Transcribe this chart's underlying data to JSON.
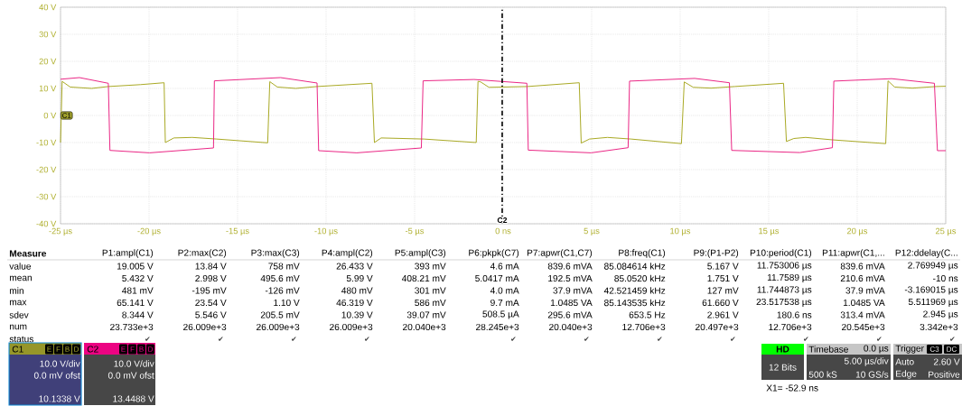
{
  "chart_data": {
    "type": "line",
    "marker": "none",
    "grid": true,
    "xlim": [
      -25,
      25
    ],
    "ylim": [
      -40,
      40
    ],
    "xticks": [
      {
        "value": -25,
        "label": "-25 µs"
      },
      {
        "value": -20,
        "label": "-20 µs"
      },
      {
        "value": -15,
        "label": "-15 µs"
      },
      {
        "value": -10,
        "label": "-10 µs"
      },
      {
        "value": -5,
        "label": "-5 µs"
      },
      {
        "value": 0,
        "label": "0 ns"
      },
      {
        "value": 5,
        "label": "5 µs"
      },
      {
        "value": 10,
        "label": "10 µs"
      },
      {
        "value": 15,
        "label": "15 µs"
      },
      {
        "value": 20,
        "label": "20 µs"
      },
      {
        "value": 25,
        "label": "25 µs"
      }
    ],
    "yticks": [
      {
        "value": -40,
        "label": "-40 V"
      },
      {
        "value": -30,
        "label": "-30 V"
      },
      {
        "value": -20,
        "label": "-20 V"
      },
      {
        "value": -10,
        "label": "-10 V"
      },
      {
        "value": 0,
        "label": "0 V"
      },
      {
        "value": 10,
        "label": "10 V"
      },
      {
        "value": 20,
        "label": "20 V"
      },
      {
        "value": 30,
        "label": "30 V"
      },
      {
        "value": 40,
        "label": "40 V"
      }
    ],
    "ref_lines": [
      {
        "axis": "x",
        "value": -0.0529,
        "label": "C2",
        "color": "#000000",
        "line_style": "dashed"
      }
    ],
    "series": [
      {
        "color": "#a3a314",
        "x": [
          -25,
          -24.91,
          -24.45,
          -23.24,
          -22.3,
          -20.49,
          -19.15,
          -19.08,
          -18.6,
          -17.56,
          -16.19,
          -13.3,
          -13.18,
          -12.75,
          -11.71,
          -10.51,
          -7.41,
          -7.27,
          -6.89,
          -4.48,
          -1.52,
          -1.42,
          -1.27,
          -0.8,
          1.37,
          4.3,
          4.41,
          4.88,
          5.89,
          7.22,
          10.07,
          10.23,
          10.74,
          11.74,
          13.08,
          15.84,
          16.0,
          16.42,
          17.09,
          18.6,
          21.61,
          21.74,
          22.11,
          23.11,
          24.45,
          25
        ],
        "values": [
          -10,
          12.6,
          10.5,
          10,
          10.7,
          11.4,
          12.1,
          -10,
          -8.3,
          -8.1,
          -8.7,
          -10.1,
          12.5,
          10.5,
          10,
          10.7,
          11.9,
          -10,
          -8.3,
          -8.7,
          -10,
          12.6,
          12.4,
          10.4,
          10.7,
          12.1,
          -10.2,
          -8.7,
          -8.1,
          -8.7,
          -10.4,
          12.4,
          10.4,
          10.1,
          10.7,
          11.9,
          -9.6,
          -8.5,
          -8.1,
          -9,
          -10.4,
          12.8,
          10.5,
          10.1,
          10.7,
          10.8
        ]
      },
      {
        "color": "#e8177c",
        "x": [
          -25,
          -23.93,
          -22.3,
          -22.21,
          -19.97,
          -16.36,
          -16.31,
          -12.57,
          -10.51,
          -10.42,
          -8.27,
          -4.62,
          -4.52,
          -1.64,
          1.34,
          1.42,
          4.97,
          7.06,
          7.14,
          10.82,
          12.78,
          12.91,
          16.76,
          18.6,
          18.68,
          21.94,
          24.36,
          24.53,
          25
        ],
        "values": [
          13.4,
          14,
          11.9,
          -12.9,
          -13.8,
          -12,
          12.8,
          14,
          12,
          -13,
          -13.8,
          -12,
          12.8,
          13.3,
          11.9,
          -12.8,
          -13.8,
          -11.9,
          12.7,
          13.7,
          12.1,
          -12.9,
          -13.7,
          -11.9,
          12.7,
          13.6,
          11.9,
          -13,
          -13
        ]
      }
    ],
    "annotations": [
      "C1",
      "Measure",
      "P1:ampl(C1)",
      "P2:max(C2)",
      "P3:max(C3)",
      "P4:ampl(C2)",
      "P5:ampl(C3)",
      "P6:pkpk(C7)",
      "P7:apwr(C1,C7)",
      "P8:freq(C1)",
      "P9:(P1-P2)",
      "P10:period(C1)",
      "P11:apwr(C1,...",
      "P12:ddelay(C...",
      "value",
      "19.005 V",
      "13.84 V",
      "758 mV",
      "26.433 V",
      "393 mV",
      "4.6 mA",
      "839.6 mVA",
      "85.084614 kHz",
      "5.167 V",
      "11.753006 µs",
      "839.6 mVA",
      "2.769949 µs",
      "mean",
      "5.432 V",
      "2.998 V",
      "495.6 mV",
      "5.99 V",
      "408.21 mV",
      "5.0417 mA",
      "192.5 mVA",
      "85.0520 kHz",
      "1.751 V",
      "11.7589 µs",
      "210.6 mVA",
      "-10 ns",
      "min",
      "481 mV",
      "-195 mV",
      "-126 mV",
      "480 mV",
      "301 mV",
      "4.0 mA",
      "37.9 mVA",
      "42.521459 kHz",
      "127 mV",
      "11.744873 µs",
      "37.9 mVA",
      "-3.169015 µs",
      "max",
      "65.141 V",
      "23.54 V",
      "1.10 V",
      "46.319 V",
      "586 mV",
      "9.7 mA",
      "1.0485 VA",
      "85.143535 kHz",
      "61.660 V",
      "23.517538 µs",
      "1.0485 VA",
      "5.511969 µs",
      "sdev",
      "8.344 V",
      "5.546 V",
      "205.5 mV",
      "10.39 V",
      "39.07 mV",
      "508.5 µA",
      "295.6 mVA",
      "653.5 Hz",
      "2.961 V",
      "180.6 ns",
      "313.4 mVA",
      "2.945 µs",
      "num",
      "23.733e+3",
      "26.009e+3",
      "26.009e+3",
      "26.009e+3",
      "20.040e+3",
      "28.245e+3",
      "20.040e+3",
      "12.706e+3",
      "20.497e+3",
      "12.706e+3",
      "20.545e+3",
      "3.342e+3",
      "status",
      "✔",
      "✔",
      "✔",
      "✔",
      "✔",
      "✔",
      "✔",
      "✔",
      "✔",
      "✔",
      "✔",
      "C1",
      "E",
      "F",
      "B",
      "D",
      "10.0 V/div",
      "0.0 mV ofst",
      "10.1338 V",
      "C2",
      "E",
      "F",
      "B",
      "D",
      "10.0 V/div",
      "0.0 mV ofst",
      "13.4488 V",
      "HD",
      "12 Bits",
      "Timebase",
      "0.0 µs",
      "5.00 µs/div",
      "500 kS",
      "10 GS/s",
      "Trigger",
      "C3",
      "DC",
      "Auto",
      "2.60 V",
      "Edge",
      "Positive",
      "X1=  -52.9 ns"
    ]
  }
}
